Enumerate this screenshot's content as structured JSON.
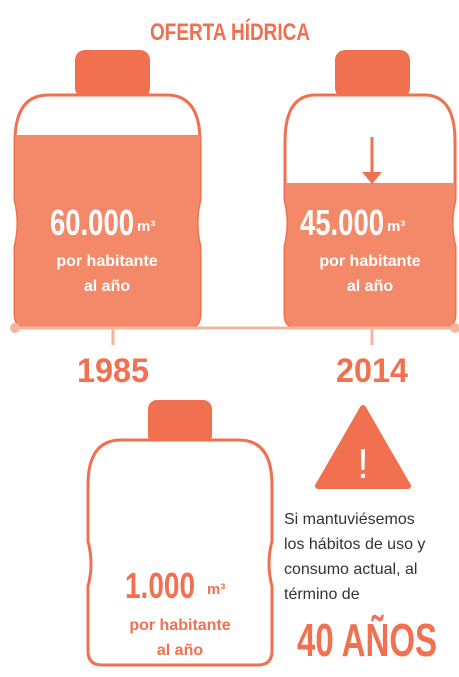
{
  "title": "OFERTA HÍDRICA",
  "bottles": [
    {
      "value": "60.000",
      "unit": "m³",
      "caption": [
        "por habitante",
        "al año"
      ],
      "year": "1985"
    },
    {
      "value": "45.000",
      "unit": "m³",
      "caption": [
        "por habitante",
        "al año"
      ],
      "year": "2014"
    },
    {
      "value": "1.000",
      "unit": "m³",
      "caption": [
        "por habitante",
        "al año"
      ]
    }
  ],
  "warning": {
    "icon": "!",
    "lines": [
      "Si mantuviésemos",
      "los hábitos de uso y",
      "consumo actual, al",
      "término de"
    ],
    "highlight": "40 AÑOS"
  }
}
